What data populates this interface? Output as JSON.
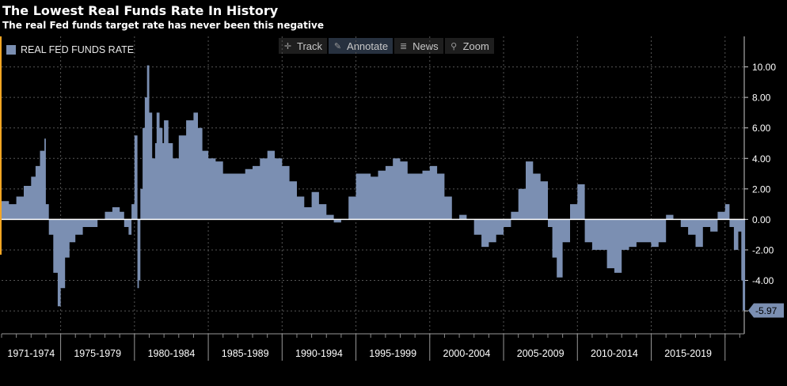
{
  "header": {
    "title": "The Lowest Real Funds Rate In History",
    "subtitle": "The real Fed funds target rate has never been this negative"
  },
  "toolbar": {
    "buttons": [
      {
        "label": "Track",
        "icon": "crosshair-icon"
      },
      {
        "label": "Annotate",
        "icon": "pencil-icon"
      },
      {
        "label": "News",
        "icon": "news-icon"
      },
      {
        "label": "Zoom",
        "icon": "magnifier-icon"
      }
    ]
  },
  "chart_data": {
    "type": "area",
    "grid": true,
    "legend_placement": "top-left",
    "colors": {
      "series": "#7b8fb2",
      "background": "#000000",
      "grid": "#555555",
      "zero_line": "#ffffff",
      "last_value_box": "#7b8fb2"
    },
    "ylim": [
      -7.5,
      12.0
    ],
    "yticks": [
      10.0,
      8.0,
      6.0,
      4.0,
      2.0,
      0.0,
      -2.0,
      -4.0,
      -6.0
    ],
    "ytick_labels": [
      "10.00",
      "8.00",
      "6.00",
      "4.00",
      "2.00",
      "0.00",
      "-2.00",
      "-4.00",
      "-6.00"
    ],
    "xlim": [
      1971.0,
      2021.3
    ],
    "x_period_labels": [
      "1971-1974",
      "1975-1979",
      "1980-1984",
      "1985-1989",
      "1990-1994",
      "1995-1999",
      "2000-2004",
      "2005-2009",
      "2010-2014",
      "2015-2019"
    ],
    "x_period_boundaries": [
      1975,
      1980,
      1985,
      1990,
      1995,
      2000,
      2005,
      2010,
      2015,
      2020
    ],
    "last_value": -5.97,
    "last_value_label": "-5.97",
    "series": [
      {
        "name": "REAL FED FUNDS RATE",
        "x": [
          1971.0,
          1971.5,
          1972.0,
          1972.5,
          1973.0,
          1973.3,
          1973.6,
          1973.9,
          1974.0,
          1974.2,
          1974.5,
          1974.8,
          1975.0,
          1975.3,
          1975.6,
          1976.0,
          1976.5,
          1977.0,
          1977.5,
          1978.0,
          1978.5,
          1979.0,
          1979.3,
          1979.6,
          1979.8,
          1980.0,
          1980.2,
          1980.3,
          1980.4,
          1980.55,
          1980.7,
          1980.85,
          1981.0,
          1981.2,
          1981.4,
          1981.5,
          1981.7,
          1981.9,
          1982.0,
          1982.3,
          1982.6,
          1983.0,
          1983.5,
          1984.0,
          1984.3,
          1984.6,
          1985.0,
          1985.5,
          1986.0,
          1986.5,
          1987.0,
          1987.5,
          1988.0,
          1988.5,
          1989.0,
          1989.5,
          1990.0,
          1990.5,
          1991.0,
          1991.5,
          1992.0,
          1992.5,
          1993.0,
          1993.5,
          1994.0,
          1994.5,
          1995.0,
          1995.5,
          1996.0,
          1996.5,
          1997.0,
          1997.5,
          1998.0,
          1998.5,
          1999.0,
          1999.5,
          2000.0,
          2000.5,
          2001.0,
          2001.5,
          2002.0,
          2002.5,
          2003.0,
          2003.5,
          2004.0,
          2004.5,
          2005.0,
          2005.5,
          2006.0,
          2006.5,
          2007.0,
          2007.5,
          2008.0,
          2008.3,
          2008.6,
          2009.0,
          2009.5,
          2010.0,
          2010.5,
          2011.0,
          2011.5,
          2012.0,
          2012.5,
          2013.0,
          2013.5,
          2014.0,
          2014.5,
          2015.0,
          2015.5,
          2016.0,
          2016.5,
          2017.0,
          2017.5,
          2018.0,
          2018.5,
          2019.0,
          2019.5,
          2020.0,
          2020.3,
          2020.6,
          2020.9,
          2021.1,
          2021.2
        ],
        "values": [
          1.2,
          1.0,
          1.5,
          2.2,
          2.8,
          3.5,
          4.5,
          5.3,
          1.0,
          -1.0,
          -3.5,
          -5.7,
          -4.5,
          -2.5,
          -1.5,
          -1.0,
          -0.5,
          -0.5,
          0.0,
          0.5,
          0.8,
          0.5,
          -0.5,
          -1.0,
          1.0,
          5.5,
          -4.5,
          -4.0,
          2.0,
          6.0,
          8.0,
          10.1,
          7.0,
          4.0,
          5.0,
          7.0,
          6.0,
          5.0,
          6.5,
          5.0,
          4.0,
          5.5,
          6.5,
          7.0,
          6.0,
          4.5,
          4.0,
          3.8,
          3.0,
          3.0,
          3.0,
          3.3,
          3.5,
          4.0,
          4.5,
          4.0,
          3.5,
          2.5,
          1.5,
          0.8,
          1.8,
          1.0,
          0.3,
          -0.2,
          0.0,
          1.5,
          3.0,
          3.0,
          2.8,
          3.2,
          3.5,
          4.0,
          3.8,
          3.0,
          3.0,
          3.2,
          3.5,
          3.0,
          1.5,
          0.0,
          0.3,
          0.0,
          -1.0,
          -1.8,
          -1.5,
          -1.0,
          -0.5,
          0.5,
          2.0,
          3.8,
          3.0,
          2.5,
          -0.5,
          -2.5,
          -3.8,
          -1.5,
          1.0,
          2.3,
          -1.5,
          -2.0,
          -2.0,
          -3.2,
          -3.5,
          -2.0,
          -1.8,
          -1.5,
          -1.5,
          -1.8,
          -1.5,
          0.3,
          0.0,
          -0.5,
          -1.0,
          -1.8,
          -0.5,
          -0.8,
          0.5,
          1.0,
          -0.5,
          -2.0,
          -0.8,
          -4.0,
          -5.97
        ]
      }
    ]
  }
}
